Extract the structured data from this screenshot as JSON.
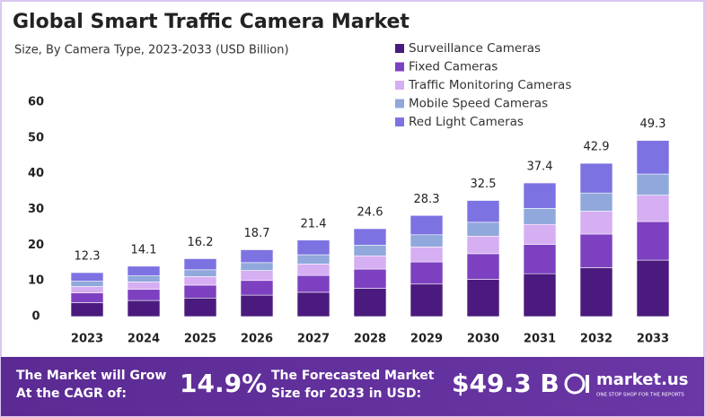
{
  "chart_data": {
    "type": "stacked_bar",
    "title": "Global Smart Traffic Camera Market",
    "subtitle": "Size, By Camera Type, 2023-2033 (USD Billion)",
    "categories": [
      "2023",
      "2024",
      "2025",
      "2026",
      "2027",
      "2028",
      "2029",
      "2030",
      "2031",
      "2032",
      "2033"
    ],
    "series": [
      {
        "name": "Surveillance Cameras",
        "color": "#4a1a7e",
        "values": [
          3.9,
          4.5,
          5.2,
          6.0,
          6.8,
          7.9,
          9.1,
          10.4,
          12.0,
          13.7,
          15.8
        ]
      },
      {
        "name": "Fixed Cameras",
        "color": "#7d40c0",
        "values": [
          2.7,
          3.1,
          3.6,
          4.1,
          4.7,
          5.4,
          6.2,
          7.2,
          8.2,
          9.4,
          10.8
        ]
      },
      {
        "name": "Traffic Monitoring Cameras",
        "color": "#d6aef2",
        "values": [
          1.8,
          2.1,
          2.4,
          2.8,
          3.2,
          3.7,
          4.2,
          4.9,
          5.6,
          6.4,
          7.4
        ]
      },
      {
        "name": "Mobile Speed Cameras",
        "color": "#90a8dc",
        "values": [
          1.5,
          1.7,
          1.9,
          2.2,
          2.6,
          3.0,
          3.4,
          3.9,
          4.5,
          5.1,
          5.9
        ]
      },
      {
        "name": "Red Light Cameras",
        "color": "#7d72e2",
        "values": [
          2.4,
          2.7,
          3.1,
          3.6,
          4.1,
          4.6,
          5.4,
          6.1,
          7.1,
          8.3,
          9.4
        ]
      }
    ],
    "totals": [
      12.3,
      14.1,
      16.2,
      18.7,
      21.4,
      24.6,
      28.3,
      32.5,
      37.4,
      42.9,
      49.3
    ],
    "ylim": [
      0,
      60
    ],
    "yticks": [
      0,
      10,
      20,
      30,
      40,
      50,
      60
    ],
    "grid": false
  },
  "footer": {
    "cagr_text": [
      "The Market will Grow",
      "At the CAGR of:"
    ],
    "cagr_value": "14.9%",
    "forecast_text": [
      "The Forecasted Market",
      "Size for 2033 in USD:"
    ],
    "forecast_value": "$49.3 B",
    "brand": "market.us",
    "tagline": "ONE STOP SHOP FOR THE REPORTS"
  }
}
